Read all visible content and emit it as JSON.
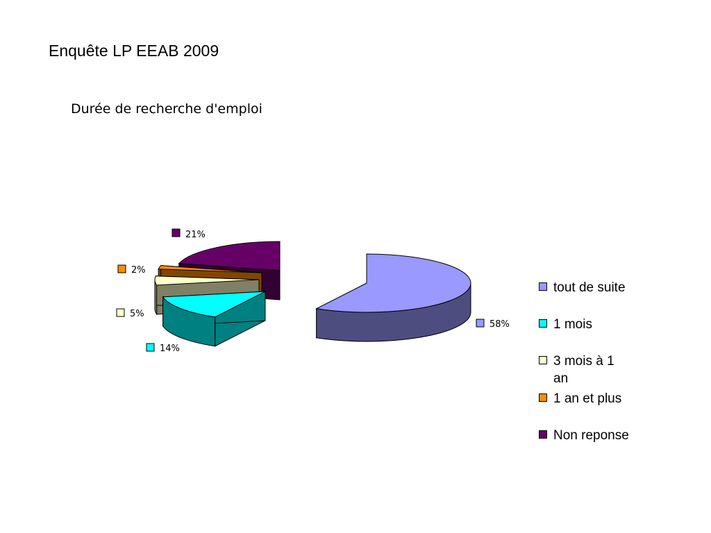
{
  "slide": {
    "title": "Enquête LP EEAB 2009"
  },
  "chart_data": {
    "type": "pie",
    "title": "Durée de recherche d'emploi",
    "slices": [
      {
        "name": "tout de suite",
        "value": 58,
        "label": "58%",
        "color": "#9999ff",
        "side": "#4d4d80"
      },
      {
        "name": "1 mois",
        "value": 14,
        "label": "14%",
        "color": "#00ffff",
        "side": "#008080"
      },
      {
        "name": "3 mois à 1 an",
        "value": 5,
        "label": "5%",
        "color": "#ffffcc",
        "side": "#808066"
      },
      {
        "name": "1 an et plus",
        "value": 2,
        "label": "2%",
        "color": "#ff8c00",
        "side": "#804600"
      },
      {
        "name": "Non reponse",
        "value": 21,
        "label": "21%",
        "color": "#660066",
        "side": "#330033"
      }
    ],
    "exploded": true,
    "legend_position": "right"
  }
}
